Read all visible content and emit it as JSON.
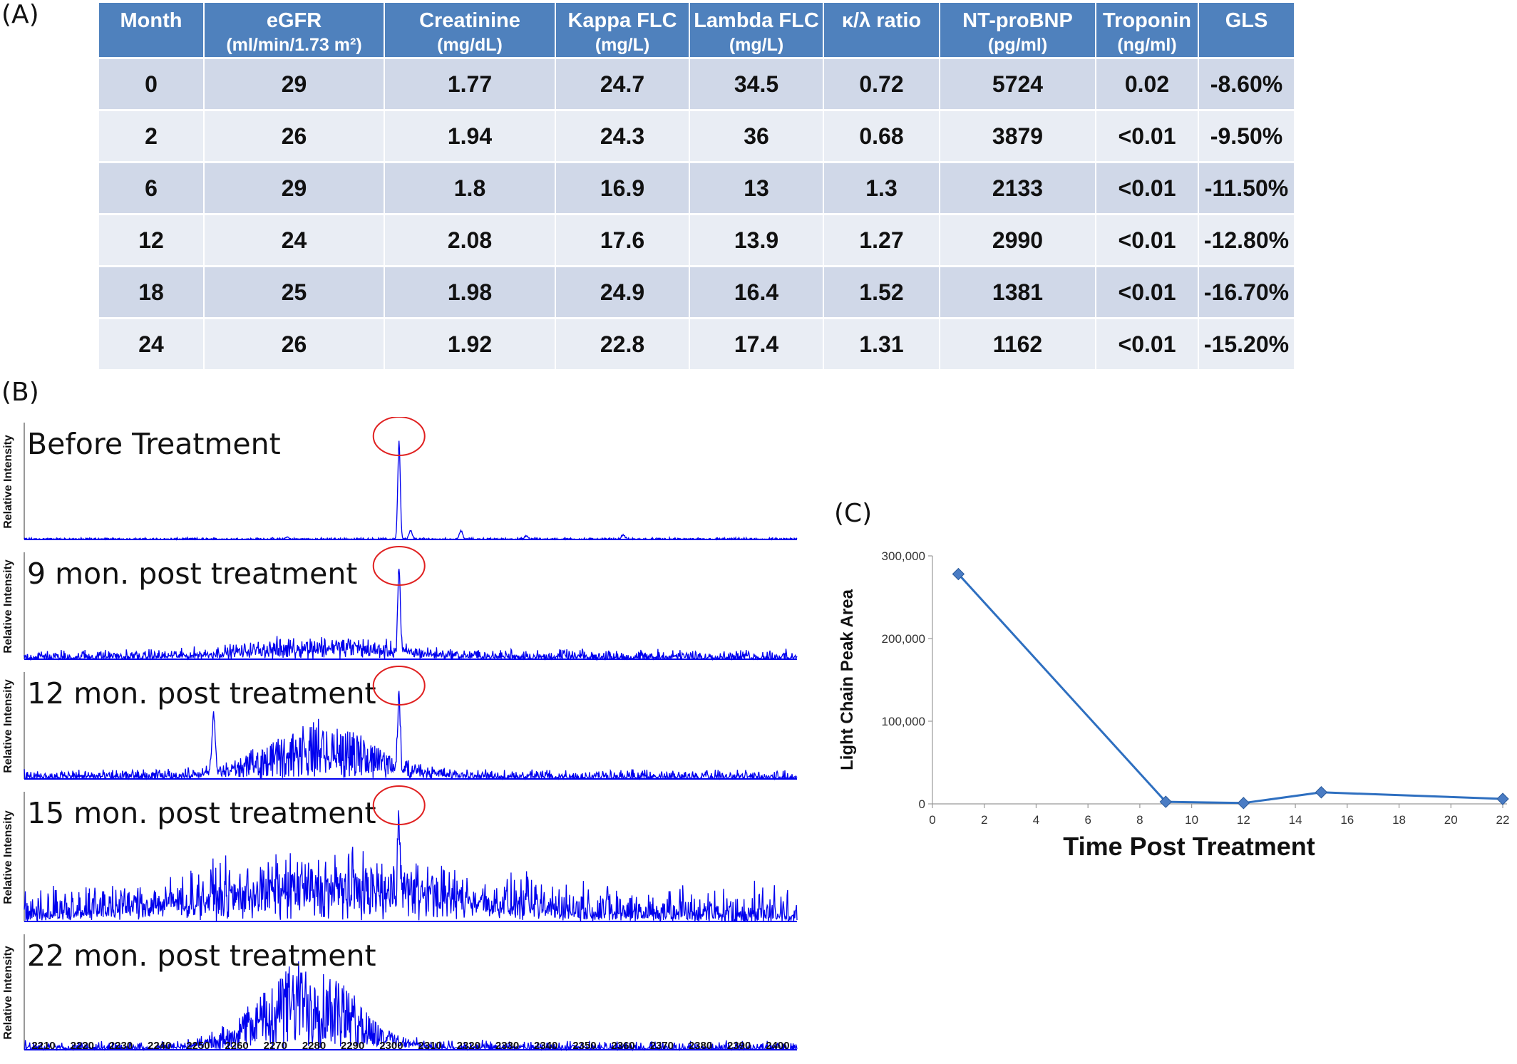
{
  "panels": {
    "a": "(A)",
    "b": "(B)",
    "c": "(C)"
  },
  "table": {
    "headers": [
      {
        "name": "Month",
        "unit": ""
      },
      {
        "name": "eGFR",
        "unit": "(ml/min/1.73 m²)"
      },
      {
        "name": "Creatinine",
        "unit": "(mg/dL)"
      },
      {
        "name": "Kappa FLC",
        "unit": "(mg/L)"
      },
      {
        "name": "Lambda FLC",
        "unit": "(mg/L)"
      },
      {
        "name": "κ/λ ratio",
        "unit": ""
      },
      {
        "name": "NT-proBNP",
        "unit": "(pg/ml)"
      },
      {
        "name": "Troponin",
        "unit": "(ng/ml)"
      },
      {
        "name": "GLS",
        "unit": ""
      }
    ],
    "rows": [
      [
        "0",
        "29",
        "1.77",
        "24.7",
        "34.5",
        "0.72",
        "5724",
        "0.02",
        "-8.60%"
      ],
      [
        "2",
        "26",
        "1.94",
        "24.3",
        "36",
        "0.68",
        "3879",
        "<0.01",
        "-9.50%"
      ],
      [
        "6",
        "29",
        "1.8",
        "16.9",
        "13",
        "1.3",
        "2133",
        "<0.01",
        "-11.50%"
      ],
      [
        "12",
        "24",
        "2.08",
        "17.6",
        "13.9",
        "1.27",
        "2990",
        "<0.01",
        "-12.80%"
      ],
      [
        "18",
        "25",
        "1.98",
        "24.9",
        "16.4",
        "1.52",
        "1381",
        "<0.01",
        "-16.70%"
      ],
      [
        "24",
        "26",
        "1.92",
        "22.8",
        "17.4",
        "1.31",
        "1162",
        "<0.01",
        "-15.20%"
      ]
    ]
  },
  "colors": {
    "header": "#4f81bd",
    "row_dark": "#d0d8e8",
    "row_light": "#e9edf4",
    "spectrum": "#0000ee",
    "circle": "#e02020",
    "series": "#2e6fc0",
    "marker": "#4a7cc4"
  },
  "chart_data": [
    {
      "type": "line",
      "panel": "B",
      "ylabel": "Relative Intensity",
      "xlim": [
        2205,
        2405
      ],
      "x_ticks": [
        2210,
        2220,
        2230,
        2240,
        2250,
        2260,
        2270,
        2280,
        2290,
        2300,
        2310,
        2320,
        2330,
        2340,
        2350,
        2360,
        2370,
        2380,
        2390,
        2400
      ],
      "highlight_x": 2302,
      "spectra": [
        {
          "title": "Before Treatment",
          "peak_x": 2302,
          "peak_rel": 0.97,
          "noise": 0.01,
          "envelope_center": 2280,
          "envelope_width": 30,
          "envelope_height": 0.0,
          "extra_peaks": [
            [
              2305,
              0.08
            ],
            [
              2318,
              0.08
            ],
            [
              2335,
              0.03
            ],
            [
              2360,
              0.04
            ],
            [
              2273,
              0.02
            ]
          ]
        },
        {
          "title": "9 mon. post treatment",
          "peak_x": 2302,
          "peak_rel": 0.95,
          "noise": 0.06,
          "envelope_center": 2282,
          "envelope_width": 26,
          "envelope_height": 0.2,
          "extra_peaks": []
        },
        {
          "title": "12 mon. post treatment",
          "peak_x": 2302,
          "peak_rel": 0.75,
          "noise": 0.06,
          "envelope_center": 2282,
          "envelope_width": 20,
          "envelope_height": 0.58,
          "extra_peaks": [
            [
              2254,
              0.62
            ]
          ]
        },
        {
          "title": "15 mon. post treatment",
          "peak_x": 2302,
          "peak_rel": 0.72,
          "noise": 0.18,
          "envelope_center": 2285,
          "envelope_width": 45,
          "envelope_height": 0.4,
          "extra_peaks": []
        },
        {
          "title": "22 mon. post treatment",
          "peak_x": 0,
          "peak_rel": 0,
          "noise": 0.05,
          "envelope_center": 2278,
          "envelope_width": 17,
          "envelope_height": 0.88,
          "extra_peaks": []
        }
      ]
    },
    {
      "type": "line",
      "panel": "C",
      "xlabel": "Time Post Treatment",
      "ylabel": "Light Chain Peak Area",
      "xlim": [
        0,
        22
      ],
      "ylim": [
        0,
        300000
      ],
      "x_ticks": [
        0,
        2,
        4,
        6,
        8,
        10,
        12,
        14,
        16,
        18,
        20,
        22
      ],
      "y_ticks": [
        0,
        100000,
        200000,
        300000
      ],
      "y_tick_labels": [
        "0",
        "100,000",
        "200,000",
        "300,000"
      ],
      "x": [
        1,
        9,
        12,
        15,
        22
      ],
      "y": [
        278000,
        2500,
        1000,
        14000,
        6000
      ]
    }
  ]
}
